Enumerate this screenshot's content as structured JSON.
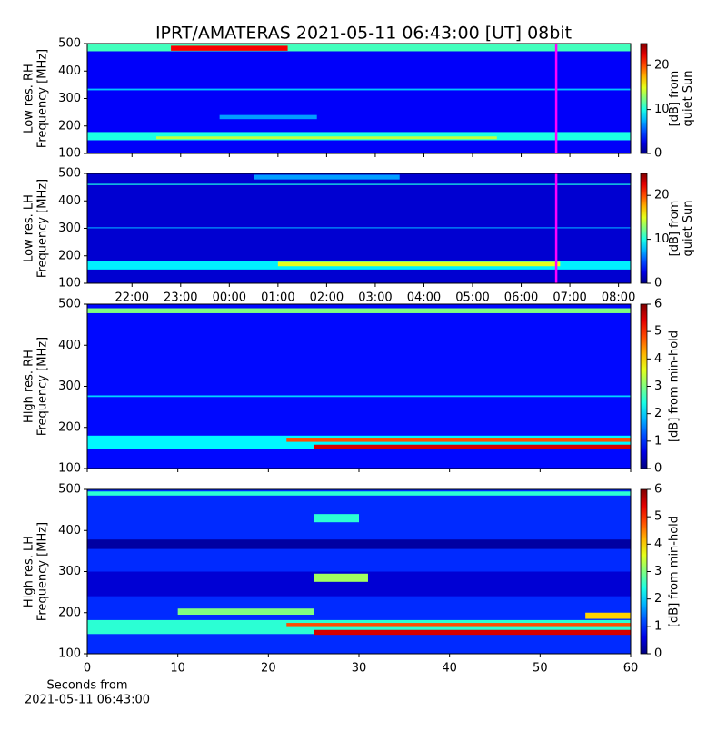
{
  "chart_data": [
    {
      "type": "heatmap",
      "title": "IPRT/AMATERAS 2021-05-11 06:43:00 [UT]   08bit",
      "ylabel": [
        "Low res. RH",
        "Frequency [MHz]"
      ],
      "ylim": [
        100,
        500
      ],
      "yticks": [
        100,
        200,
        300,
        400,
        500
      ],
      "xlim": [
        21.08,
        32.25
      ],
      "marker_x": 30.72,
      "marker_color": "#ff00ff",
      "colorbar": {
        "label": [
          "[dB] from",
          "quiet Sun"
        ],
        "lim": [
          0,
          25
        ],
        "ticks": [
          0,
          10,
          20
        ]
      },
      "bands": [
        {
          "x": [
            21.08,
            32.25
          ],
          "y": [
            100,
            500
          ],
          "value": 3
        },
        {
          "x": [
            21.08,
            32.25
          ],
          "y": [
            148,
            178
          ],
          "value": 10
        },
        {
          "x": [
            22.5,
            29.5
          ],
          "y": [
            152,
            162
          ],
          "value": 14
        },
        {
          "x": [
            21.08,
            32.25
          ],
          "y": [
            472,
            497
          ],
          "value": 11
        },
        {
          "x": [
            22.8,
            25.2
          ],
          "y": [
            474,
            492
          ],
          "value": 22
        },
        {
          "x": [
            23.8,
            25.8
          ],
          "y": [
            225,
            240
          ],
          "value": 7
        },
        {
          "x": [
            21.08,
            32.25
          ],
          "y": [
            330,
            336
          ],
          "value": 8
        }
      ]
    },
    {
      "type": "heatmap",
      "ylabel": [
        "Low res. LH",
        "Frequency [MHz]"
      ],
      "ylim": [
        100,
        500
      ],
      "yticks": [
        100,
        200,
        300,
        400,
        500
      ],
      "xlim": [
        21.08,
        32.25
      ],
      "marker_x": 30.72,
      "marker_color": "#ff00ff",
      "xticks": [
        {
          "value": 22,
          "label": "22:00"
        },
        {
          "value": 23,
          "label": "23:00"
        },
        {
          "value": 24,
          "label": "00:00"
        },
        {
          "value": 25,
          "label": "01:00"
        },
        {
          "value": 26,
          "label": "02:00"
        },
        {
          "value": 27,
          "label": "03:00"
        },
        {
          "value": 28,
          "label": "04:00"
        },
        {
          "value": 29,
          "label": "05:00"
        },
        {
          "value": 30,
          "label": "06:00"
        },
        {
          "value": 31,
          "label": "07:00"
        },
        {
          "value": 32,
          "label": "08:00"
        }
      ],
      "colorbar": {
        "label": [
          "[dB] from",
          "quiet Sun"
        ],
        "lim": [
          0,
          25
        ],
        "ticks": [
          0,
          10,
          20
        ]
      },
      "bands": [
        {
          "x": [
            21.08,
            32.25
          ],
          "y": [
            100,
            500
          ],
          "value": 2
        },
        {
          "x": [
            21.08,
            32.25
          ],
          "y": [
            150,
            182
          ],
          "value": 9
        },
        {
          "x": [
            25,
            30.8
          ],
          "y": [
            162,
            178
          ],
          "value": 15
        },
        {
          "x": [
            21.08,
            32.25
          ],
          "y": [
            458,
            462
          ],
          "value": 10
        },
        {
          "x": [
            24.5,
            27.5
          ],
          "y": [
            478,
            495
          ],
          "value": 7
        },
        {
          "x": [
            21.08,
            32.25
          ],
          "y": [
            300,
            304
          ],
          "value": 7
        }
      ]
    },
    {
      "type": "heatmap",
      "ylabel": [
        "High res. RH",
        "Frequency [MHz]"
      ],
      "ylim": [
        100,
        500
      ],
      "yticks": [
        100,
        200,
        300,
        400,
        500
      ],
      "xlim": [
        0,
        60
      ],
      "colorbar": {
        "label": [
          "[dB] from min-hold"
        ],
        "lim": [
          0,
          6
        ],
        "ticks": [
          0,
          1,
          2,
          3,
          4,
          5,
          6
        ]
      },
      "bands": [
        {
          "x": [
            0,
            60
          ],
          "y": [
            100,
            500
          ],
          "value": 0.8
        },
        {
          "x": [
            0,
            60
          ],
          "y": [
            148,
            180
          ],
          "value": 2.2
        },
        {
          "x": [
            22,
            60
          ],
          "y": [
            165,
            175
          ],
          "value": 4.8
        },
        {
          "x": [
            25,
            60
          ],
          "y": [
            148,
            158
          ],
          "value": 5.5
        },
        {
          "x": [
            0,
            60
          ],
          "y": [
            478,
            490
          ],
          "value": 3
        },
        {
          "x": [
            0,
            60
          ],
          "y": [
            274,
            278
          ],
          "value": 2
        }
      ]
    },
    {
      "type": "heatmap",
      "ylabel": [
        "High res. LH",
        "Frequency [MHz]"
      ],
      "ylim": [
        100,
        500
      ],
      "yticks": [
        100,
        200,
        300,
        400,
        500
      ],
      "xlim": [
        0,
        60
      ],
      "xticks": [
        0,
        10,
        20,
        30,
        40,
        50,
        60
      ],
      "xlabel": [
        "Seconds from",
        "2021-05-11 06:43:00"
      ],
      "colorbar": {
        "label": [
          "[dB] from min-hold"
        ],
        "lim": [
          0,
          6
        ],
        "ticks": [
          0,
          1,
          2,
          3,
          4,
          5,
          6
        ]
      },
      "bands": [
        {
          "x": [
            0,
            60
          ],
          "y": [
            100,
            500
          ],
          "value": 1
        },
        {
          "x": [
            0,
            60
          ],
          "y": [
            355,
            378
          ],
          "value": 0.2
        },
        {
          "x": [
            0,
            60
          ],
          "y": [
            240,
            300
          ],
          "value": 0.5
        },
        {
          "x": [
            0,
            60
          ],
          "y": [
            148,
            182
          ],
          "value": 2.5
        },
        {
          "x": [
            22,
            60
          ],
          "y": [
            165,
            175
          ],
          "value": 4.8
        },
        {
          "x": [
            25,
            60
          ],
          "y": [
            146,
            158
          ],
          "value": 5.5
        },
        {
          "x": [
            10,
            25
          ],
          "y": [
            195,
            210
          ],
          "value": 3
        },
        {
          "x": [
            25,
            31
          ],
          "y": [
            275,
            295
          ],
          "value": 3.2
        },
        {
          "x": [
            25,
            30
          ],
          "y": [
            420,
            440
          ],
          "value": 2.5
        },
        {
          "x": [
            55,
            60
          ],
          "y": [
            185,
            200
          ],
          "value": 4
        },
        {
          "x": [
            0,
            60
          ],
          "y": [
            485,
            495
          ],
          "value": 2.5
        }
      ]
    }
  ]
}
